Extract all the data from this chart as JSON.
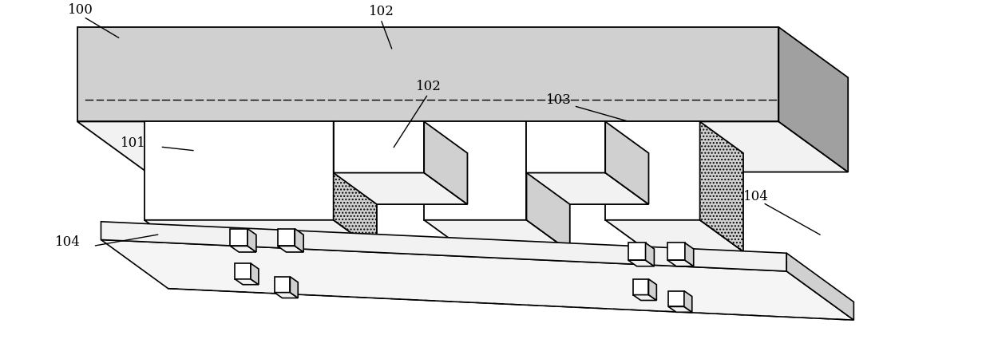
{
  "figure_width": 12.4,
  "figure_height": 4.45,
  "dpi": 100,
  "bg_color": "#ffffff",
  "line_color": "#000000",
  "light_fill": "#f2f2f2",
  "medium_fill": "#d0d0d0",
  "dark_fill": "#a0a0a0",
  "white_fill": "#ffffff",
  "hatch_dense": "xxxx"
}
